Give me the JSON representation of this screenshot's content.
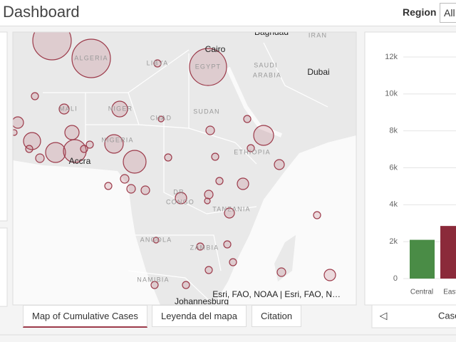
{
  "header": {
    "title": "Dashboard",
    "region_label": "Region",
    "region_value": "All"
  },
  "map": {
    "labels": [
      "ALGERIA",
      "LIBYA",
      "EGYPT",
      "SAUDI",
      "ARABIA",
      "IRAN",
      "MALI",
      "NIGER",
      "CHAD",
      "SUDAN",
      "NIGERIA",
      "ETHIOPIA",
      "DR",
      "CONGO",
      "TANZANIA",
      "ANGOLA",
      "ZAMBIA",
      "NAMIBIA"
    ],
    "cities": [
      "Baghdad",
      "Cairo",
      "Dubai",
      "Accra",
      "Johannesburg"
    ],
    "attribution": "Esri, FAO, NOAA | Esri, FAO, N…",
    "tabs": [
      "Map of Cumulative Cases",
      "Leyenda del mapa",
      "Citation"
    ]
  },
  "chart_data": {
    "type": "bar",
    "categories": [
      "Central",
      "Easte"
    ],
    "values": [
      2100,
      2850
    ],
    "colors": [
      "#4a8c46",
      "#8b2a3a"
    ],
    "ylim": [
      0,
      12000
    ],
    "yticks": [
      0,
      {
        "value": 2000,
        "label": "2k"
      },
      {
        "value": 4000,
        "label": "4k"
      },
      {
        "value": 6000,
        "label": "6k"
      },
      {
        "value": 8000,
        "label": "8k"
      },
      {
        "value": 10000,
        "label": "10k"
      },
      {
        "value": 12000,
        "label": "12k"
      }
    ],
    "grid": true
  },
  "chart_footer": {
    "label": "Case"
  }
}
